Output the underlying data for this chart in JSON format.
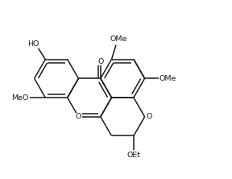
{
  "bg": "#ffffff",
  "lc": "#1a1a1a",
  "lw": 1.1,
  "fs": 6.8,
  "xlim": [
    0,
    10
  ],
  "ylim": [
    0,
    8
  ]
}
